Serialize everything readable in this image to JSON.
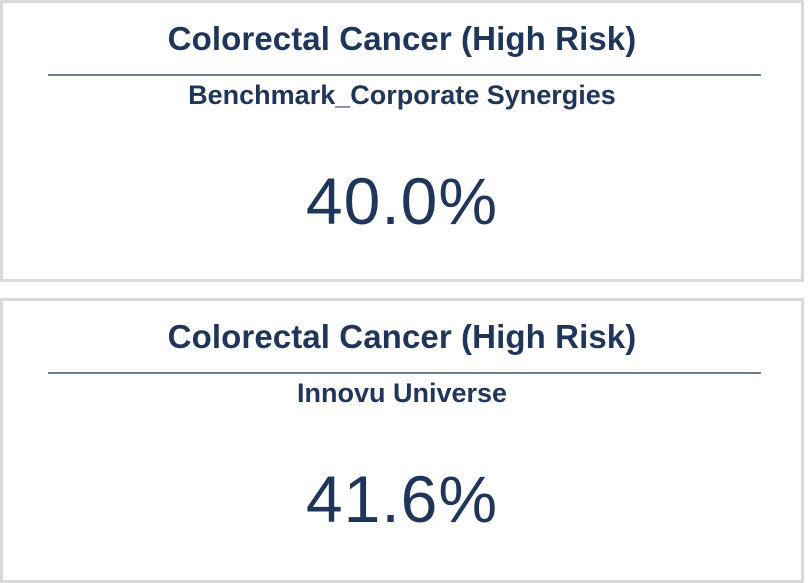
{
  "cards": [
    {
      "title": "Colorectal Cancer (High Risk)",
      "subtitle": "Benchmark_Corporate Synergies",
      "value": "40.0%"
    },
    {
      "title": "Colorectal Cancer (High Risk)",
      "subtitle": "Innovu Universe",
      "value": "41.6%"
    }
  ],
  "colors": {
    "text": "#1f3559",
    "rule": "#6d7e98",
    "border": "#d9d9d9"
  }
}
